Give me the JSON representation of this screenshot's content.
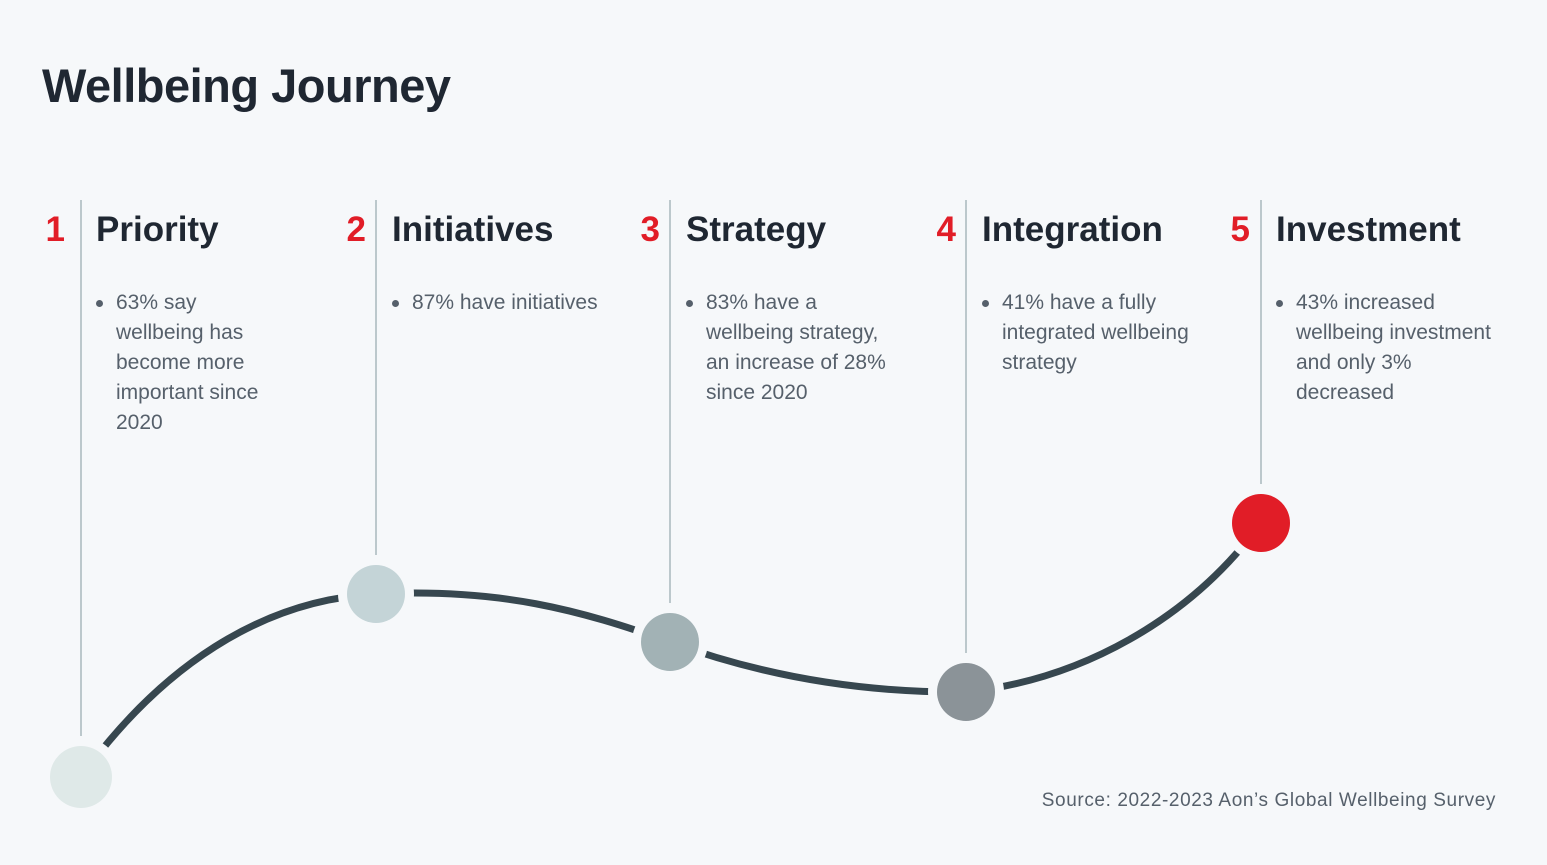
{
  "title": "Wellbeing Journey",
  "stages": [
    {
      "number": "1",
      "title": "Priority",
      "points": [
        "63% say wellbeing has become more important since 2020"
      ],
      "node_color": "#dfe9e8"
    },
    {
      "number": "2",
      "title": "Initiatives",
      "points": [
        "87% have initiatives"
      ],
      "node_color": "#c4d4d7"
    },
    {
      "number": "3",
      "title": "Strategy",
      "points": [
        "83% have a wellbeing strategy, an increase of 28% since 2020"
      ],
      "node_color": "#a2b2b5"
    },
    {
      "number": "4",
      "title": "Integration",
      "points": [
        "41% have a fully integrated wellbeing strategy"
      ],
      "node_color": "#8b9398"
    },
    {
      "number": "5",
      "title": "Investment",
      "points": [
        "43% increased wellbeing investment and only 3% decreased"
      ],
      "node_color": "#e11d27"
    }
  ],
  "colors": {
    "accent": "#e11d27",
    "path": "#37474f",
    "divider": "#a9b7bd",
    "heading": "#1f2732",
    "body_text": "#56606b",
    "background": "#f6f8fa"
  },
  "source": "Source: 2022-2023 Aon’s Global Wellbeing Survey"
}
